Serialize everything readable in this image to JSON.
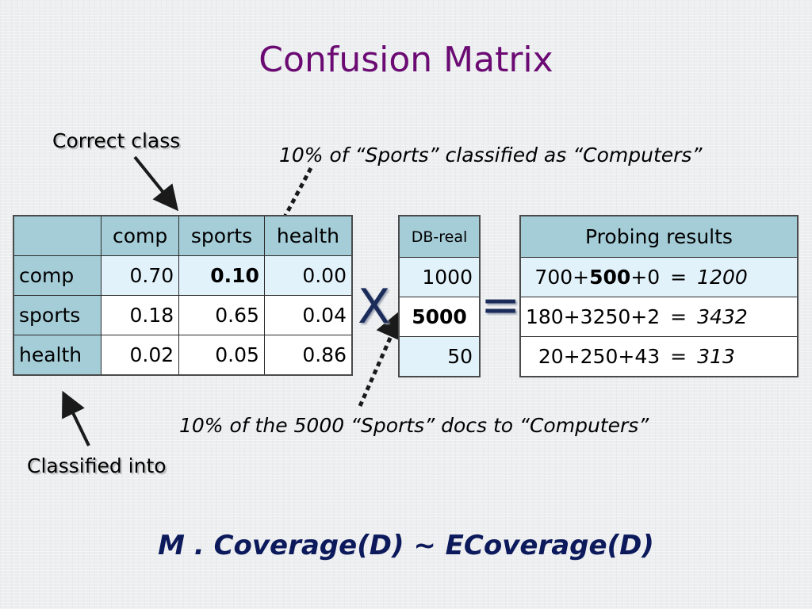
{
  "title": "Confusion Matrix",
  "callouts": {
    "correct_class": "Correct class",
    "classified_into": "Classified into",
    "sports_as_comp": "10% of “Sports” classified as “Computers”",
    "docs_to_comp": "10% of  the 5000 “Sports” docs to “Computers”"
  },
  "matrix": {
    "columns": [
      "comp",
      "sports",
      "health"
    ],
    "rows": [
      {
        "label": "comp",
        "values": [
          "0.70",
          "0.10",
          "0.00"
        ]
      },
      {
        "label": "sports",
        "values": [
          "0.18",
          "0.65",
          "0.04"
        ]
      },
      {
        "label": "health",
        "values": [
          "0.02",
          "0.05",
          "0.86"
        ]
      }
    ]
  },
  "operators": {
    "times": "X",
    "equals": "="
  },
  "db_real": {
    "header": "DB-real",
    "values": [
      "1000",
      "5000",
      "50"
    ]
  },
  "probing": {
    "header": "Probing results",
    "rows": [
      {
        "pre": "700+",
        "bold": "500",
        "post": "+0",
        "eq": "=",
        "result": "1200"
      },
      {
        "pre": "180+3250+2",
        "bold": "",
        "post": "",
        "eq": "=",
        "result": "3432"
      },
      {
        "pre": "20+250+43",
        "bold": "",
        "post": "",
        "eq": "=",
        "result": "313"
      }
    ]
  },
  "formula": "M . Coverage(D) ~ ECoverage(D)",
  "colors": {
    "title": "#6b0a73",
    "header_fill": "#a5cdd8",
    "highlight_fill": "#e2f2fb",
    "formula": "#0c1a5c"
  }
}
